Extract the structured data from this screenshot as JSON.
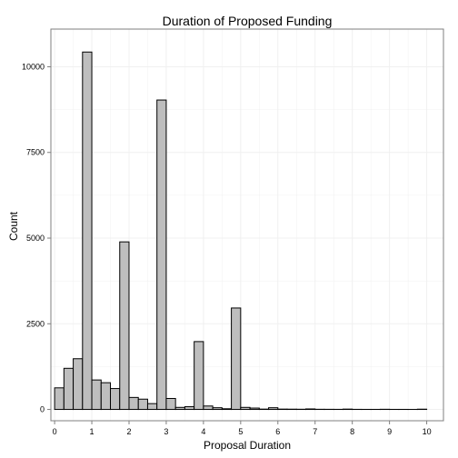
{
  "chart_data": {
    "type": "bar",
    "title": "Duration of Proposed Funding",
    "xlabel": "Proposal Duration",
    "ylabel": "Count",
    "xlim": [
      -0.1,
      10.45
    ],
    "ylim": [
      -330,
      11100
    ],
    "x_ticks": [
      0,
      1,
      2,
      3,
      4,
      5,
      6,
      7,
      8,
      9,
      10
    ],
    "y_ticks": [
      0,
      2500,
      5000,
      7500,
      10000
    ],
    "bin_width": 0.25,
    "bin_start": 0,
    "grid": true,
    "legend": "none",
    "bars": [
      {
        "x0": 0.0,
        "value": 630
      },
      {
        "x0": 0.25,
        "value": 1200
      },
      {
        "x0": 0.5,
        "value": 1480
      },
      {
        "x0": 0.75,
        "value": 10430
      },
      {
        "x0": 1.0,
        "value": 860
      },
      {
        "x0": 1.25,
        "value": 780
      },
      {
        "x0": 1.5,
        "value": 610
      },
      {
        "x0": 1.75,
        "value": 4890
      },
      {
        "x0": 2.0,
        "value": 350
      },
      {
        "x0": 2.25,
        "value": 300
      },
      {
        "x0": 2.5,
        "value": 170
      },
      {
        "x0": 2.75,
        "value": 9030
      },
      {
        "x0": 3.0,
        "value": 320
      },
      {
        "x0": 3.25,
        "value": 60
      },
      {
        "x0": 3.5,
        "value": 80
      },
      {
        "x0": 3.75,
        "value": 1980
      },
      {
        "x0": 4.0,
        "value": 100
      },
      {
        "x0": 4.25,
        "value": 50
      },
      {
        "x0": 4.5,
        "value": 20
      },
      {
        "x0": 4.75,
        "value": 2960
      },
      {
        "x0": 5.0,
        "value": 60
      },
      {
        "x0": 5.25,
        "value": 40
      },
      {
        "x0": 5.5,
        "value": 10
      },
      {
        "x0": 5.75,
        "value": 50
      },
      {
        "x0": 6.0,
        "value": 10
      },
      {
        "x0": 6.25,
        "value": 8
      },
      {
        "x0": 6.5,
        "value": 6
      },
      {
        "x0": 6.75,
        "value": 15
      },
      {
        "x0": 7.0,
        "value": 5
      },
      {
        "x0": 7.25,
        "value": 4
      },
      {
        "x0": 7.5,
        "value": 3
      },
      {
        "x0": 7.75,
        "value": 10
      },
      {
        "x0": 8.0,
        "value": 3
      },
      {
        "x0": 8.25,
        "value": 2
      },
      {
        "x0": 8.5,
        "value": 2
      },
      {
        "x0": 8.75,
        "value": 5
      },
      {
        "x0": 9.0,
        "value": 2
      },
      {
        "x0": 9.25,
        "value": 2
      },
      {
        "x0": 9.5,
        "value": 1
      },
      {
        "x0": 9.75,
        "value": 8
      }
    ]
  },
  "colors": {
    "bar_fill": "#bebebe",
    "bar_stroke": "#000000",
    "grid": "#f0f0f0",
    "panel_border": "#7f7f7f",
    "background": "#ffffff"
  }
}
